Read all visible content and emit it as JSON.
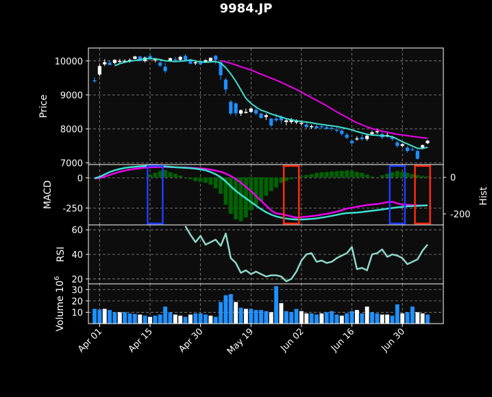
{
  "chart_data": {
    "type": "candlestick",
    "title": "9984.JP",
    "colors": {
      "up": "#ffffff",
      "down": "#1e90ff",
      "sma_fast": "#40e0d0",
      "sma_slow": "#ee00ee",
      "hist": "#006400",
      "rsi": "#8fd8c8",
      "marker_blue": "#1e3cff",
      "marker_red": "#ff2a0f"
    },
    "x_ticks": [
      "Apr 01",
      "Apr 15",
      "Apr 30",
      "May 19",
      "Jun 02",
      "Jun 16",
      "Jun 30"
    ],
    "x_tick_index": [
      1,
      11,
      21,
      31,
      41,
      51,
      61
    ],
    "n_bars": 67,
    "panels": {
      "price": {
        "ylabel": "Price",
        "yticks": [
          7000,
          8000,
          9000,
          10000
        ],
        "ylim": [
          6950,
          10380
        ]
      },
      "macd": {
        "ylabel": "MACD",
        "yticks": [
          0,
          -250
        ],
        "ylim": [
          -390,
          110
        ],
        "right_label": "Hist",
        "right_ticks": [
          0,
          -200
        ],
        "right_lim": [
          -260,
          70
        ]
      },
      "rsi": {
        "ylabel": "RSI",
        "yticks": [
          20,
          40,
          60
        ],
        "ylim": [
          16,
          64
        ]
      },
      "volume": {
        "ylabel": "Volume  10^6",
        "yticks": [
          10,
          20,
          30
        ],
        "ylim": [
          0,
          35
        ]
      }
    },
    "ohlc": [
      [
        9430,
        9520,
        9350,
        9400
      ],
      [
        9600,
        9900,
        9550,
        9850
      ],
      [
        9900,
        10050,
        9850,
        9960
      ],
      [
        9950,
        10020,
        9880,
        9880
      ],
      [
        9940,
        10050,
        9900,
        10030
      ],
      [
        9990,
        10060,
        9940,
        10000
      ],
      [
        9980,
        10050,
        9960,
        10000
      ],
      [
        10000,
        10070,
        9950,
        10030
      ],
      [
        10060,
        10150,
        10050,
        10130
      ],
      [
        10130,
        10150,
        9980,
        10000
      ],
      [
        10000,
        10130,
        9950,
        10100
      ],
      [
        10150,
        10200,
        10050,
        10080
      ],
      [
        10020,
        10090,
        9960,
        10060
      ],
      [
        9950,
        10020,
        9820,
        9860
      ],
      [
        9830,
        9950,
        9640,
        9700
      ],
      [
        10000,
        10100,
        9980,
        10080
      ],
      [
        10050,
        10120,
        10000,
        10020
      ],
      [
        10030,
        10150,
        10000,
        10120
      ],
      [
        10150,
        10200,
        10000,
        10020
      ],
      [
        10000,
        10060,
        9900,
        9920
      ],
      [
        9930,
        10000,
        9880,
        9960
      ],
      [
        9950,
        10020,
        9870,
        9900
      ],
      [
        9970,
        10050,
        9950,
        10020
      ],
      [
        10000,
        10100,
        9990,
        10090
      ],
      [
        10150,
        10180,
        9900,
        10030
      ],
      [
        9960,
        9990,
        9440,
        9580
      ],
      [
        9450,
        9500,
        9040,
        9160
      ],
      [
        8800,
        8850,
        8400,
        8450
      ],
      [
        8750,
        8780,
        8370,
        8460
      ],
      [
        8450,
        8570,
        8380,
        8550
      ],
      [
        8500,
        8600,
        8450,
        8500
      ],
      [
        8500,
        8620,
        8480,
        8600
      ],
      [
        8560,
        8680,
        8400,
        8450
      ],
      [
        8450,
        8480,
        8300,
        8320
      ],
      [
        8350,
        8450,
        8260,
        8400
      ],
      [
        8300,
        8320,
        8050,
        8100
      ],
      [
        8300,
        8450,
        8200,
        8250
      ],
      [
        8350,
        8400,
        8150,
        8250
      ],
      [
        8200,
        8300,
        8100,
        8250
      ],
      [
        8200,
        8320,
        8150,
        8270
      ],
      [
        8200,
        8280,
        8140,
        8220
      ],
      [
        8150,
        8250,
        8100,
        8180
      ],
      [
        8130,
        8180,
        8030,
        8050
      ],
      [
        8050,
        8130,
        8000,
        8080
      ],
      [
        8080,
        8120,
        8000,
        8020
      ],
      [
        8080,
        8100,
        8000,
        8060
      ],
      [
        8050,
        8100,
        7980,
        8000
      ],
      [
        8030,
        8080,
        7950,
        8010
      ],
      [
        7970,
        8050,
        7900,
        7950
      ],
      [
        7950,
        8000,
        7800,
        7850
      ],
      [
        7830,
        7880,
        7700,
        7740
      ],
      [
        7650,
        7700,
        7550,
        7580
      ],
      [
        7700,
        7780,
        7650,
        7720
      ],
      [
        7750,
        7850,
        7650,
        7700
      ],
      [
        7700,
        7850,
        7650,
        7800
      ],
      [
        7850,
        7950,
        7800,
        7900
      ],
      [
        7900,
        8000,
        7850,
        7930
      ],
      [
        7850,
        7900,
        7700,
        7750
      ],
      [
        7800,
        7880,
        7750,
        7820
      ],
      [
        7750,
        7800,
        7650,
        7700
      ],
      [
        7600,
        7650,
        7450,
        7500
      ],
      [
        7500,
        7580,
        7450,
        7550
      ],
      [
        7450,
        7500,
        7300,
        7350
      ],
      [
        7400,
        7450,
        7350,
        7380
      ],
      [
        7350,
        7400,
        7100,
        7120
      ],
      [
        7450,
        7540,
        7400,
        7520
      ],
      [
        7580,
        7680,
        7550,
        7650
      ]
    ],
    "sma_fast": [
      null,
      null,
      null,
      null,
      9860,
      9920,
      9960,
      9990,
      10010,
      10040,
      10060,
      10070,
      10060,
      10040,
      10000,
      9990,
      9980,
      9990,
      10000,
      10030,
      10000,
      9970,
      9960,
      9970,
      9980,
      9940,
      9800,
      9620,
      9400,
      9150,
      8900,
      8750,
      8640,
      8550,
      8500,
      8440,
      8390,
      8350,
      8300,
      8270,
      8240,
      8220,
      8200,
      8180,
      8150,
      8130,
      8110,
      8090,
      8070,
      8040,
      8010,
      7970,
      7920,
      7880,
      7840,
      7820,
      7810,
      7800,
      7790,
      7770,
      7700,
      7620,
      7560,
      7490,
      7430,
      7420,
      7460
    ],
    "sma_slow": [
      null,
      null,
      null,
      null,
      null,
      null,
      null,
      null,
      null,
      null,
      null,
      null,
      null,
      null,
      null,
      null,
      null,
      null,
      null,
      null,
      null,
      null,
      null,
      null,
      null,
      10010,
      9970,
      9930,
      9880,
      9830,
      9780,
      9730,
      9670,
      9610,
      9550,
      9490,
      9430,
      9370,
      9300,
      9230,
      9160,
      9080,
      9000,
      8920,
      8840,
      8760,
      8680,
      8590,
      8500,
      8420,
      8340,
      8260,
      8180,
      8120,
      8060,
      8010,
      7970,
      7930,
      7900,
      7870,
      7840,
      7820,
      7800,
      7780,
      7760,
      7740,
      7720
    ],
    "macd": [
      -5,
      8,
      28,
      48,
      63,
      73,
      82,
      88,
      92,
      96,
      98,
      99,
      99,
      97,
      94,
      91,
      88,
      85,
      83,
      80,
      76,
      70,
      62,
      48,
      30,
      5,
      -30,
      -70,
      -108,
      -140,
      -170,
      -200,
      -230,
      -260,
      -285,
      -305,
      -320,
      -330,
      -338,
      -342,
      -345,
      -345,
      -343,
      -340,
      -336,
      -330,
      -323,
      -315,
      -307,
      -298,
      -292,
      -290,
      -288,
      -283,
      -278,
      -273,
      -268,
      -262,
      -256,
      -250,
      -245,
      -240,
      -236,
      -234,
      -232,
      -230,
      -228
    ],
    "macd_signal": [
      -5,
      -2,
      10,
      24,
      38,
      50,
      60,
      68,
      75,
      80,
      84,
      87,
      89,
      90,
      90,
      89,
      88,
      86,
      85,
      83,
      81,
      78,
      74,
      68,
      60,
      50,
      35,
      15,
      -10,
      -40,
      -75,
      -110,
      -150,
      -190,
      -230,
      -270,
      -295,
      -300,
      -310,
      -320,
      -330,
      -325,
      -322,
      -318,
      -312,
      -305,
      -298,
      -290,
      -280,
      -268,
      -255,
      -248,
      -240,
      -232,
      -225,
      -220,
      -218,
      -210,
      -202,
      -198,
      -212,
      -221,
      -224,
      -226,
      -228,
      -230,
      -230
    ],
    "hist": [
      0,
      0,
      0,
      0,
      0,
      0,
      0,
      0,
      0,
      0,
      0,
      15,
      25,
      35,
      40,
      28,
      20,
      10,
      0,
      -10,
      -20,
      -25,
      -30,
      -40,
      -60,
      -90,
      -150,
      -200,
      -230,
      -240,
      -220,
      -180,
      -150,
      -130,
      -100,
      -75,
      -55,
      -30,
      -20,
      -10,
      0,
      8,
      13,
      18,
      25,
      28,
      30,
      32,
      34,
      36,
      38,
      35,
      30,
      25,
      15,
      5,
      0,
      12,
      20,
      28,
      35,
      30,
      25,
      18,
      12,
      8,
      5
    ],
    "rsi": [
      null,
      null,
      null,
      null,
      null,
      null,
      null,
      null,
      null,
      null,
      null,
      null,
      null,
      null,
      null,
      null,
      null,
      null,
      63,
      56,
      50,
      55,
      48,
      50,
      52,
      47,
      57,
      37,
      33,
      25,
      27,
      24,
      26,
      24,
      22,
      23,
      23,
      22,
      18,
      20,
      26,
      35,
      40,
      41,
      34,
      35,
      33,
      34,
      37,
      39,
      41,
      46,
      28,
      29,
      27,
      40,
      41,
      44,
      38,
      40,
      39,
      37,
      32,
      34,
      36,
      43,
      48
    ],
    "volume": [
      13,
      12.5,
      13,
      12,
      10,
      10,
      10,
      9,
      8.5,
      8,
      7,
      6,
      7,
      8,
      15,
      10,
      8,
      7,
      6,
      8,
      9,
      9,
      8,
      7,
      6,
      19,
      25,
      26,
      19,
      14,
      13,
      13,
      12,
      12,
      11,
      10,
      33,
      18,
      11,
      10,
      13,
      11,
      9,
      9,
      8,
      9,
      10,
      11,
      8,
      7,
      9,
      11,
      12,
      9,
      15,
      10,
      9,
      8,
      8,
      7,
      17,
      9,
      10,
      15,
      10,
      9,
      8
    ],
    "vol_up": [
      0,
      0,
      1,
      0,
      0,
      1,
      0,
      0,
      0,
      1,
      0,
      1,
      0,
      0,
      0,
      0,
      1,
      1,
      0,
      1,
      0,
      0,
      0,
      1,
      0,
      0,
      0,
      0,
      1,
      0,
      1,
      0,
      0,
      0,
      0,
      1,
      0,
      1,
      0,
      0,
      0,
      1,
      1,
      0,
      0,
      1,
      0,
      0,
      0,
      1,
      0,
      0,
      1,
      0,
      1,
      0,
      0,
      1,
      1,
      0,
      0,
      1,
      0,
      0,
      1,
      1,
      0
    ],
    "markers": [
      {
        "color": "blue",
        "start": 11,
        "end": 13
      },
      {
        "color": "red",
        "start": 38,
        "end": 40
      },
      {
        "color": "blue",
        "start": 59,
        "end": 61
      },
      {
        "color": "red",
        "start": 64,
        "end": 66
      }
    ]
  }
}
